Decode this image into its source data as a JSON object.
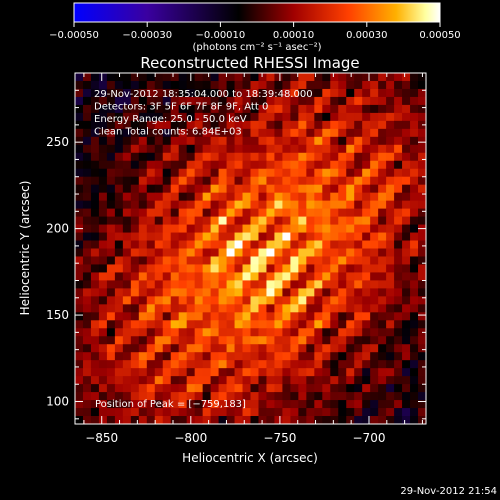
{
  "chart_data": {
    "type": "heatmap",
    "title": "Reconstructed RHESSI Image",
    "xlabel": "Heliocentric X (arcsec)",
    "ylabel": "Heliocentric Y (arcsec)",
    "xlim": [
      -865,
      -668
    ],
    "ylim": [
      87,
      290
    ],
    "x_ticks": [
      -850,
      -800,
      -750,
      -700
    ],
    "y_ticks": [
      100,
      150,
      200,
      250
    ],
    "x_tick_labels": [
      "−850",
      "−800",
      "−750",
      "−700"
    ],
    "y_tick_labels": [
      "100",
      "150",
      "200",
      "250"
    ],
    "grid": false,
    "peak": [
      -759,
      183
    ],
    "colorbar": {
      "range": [
        -0.0005,
        0.0005
      ],
      "ticks": [
        -0.0005,
        -0.0003,
        -0.0001,
        0.0001,
        0.0003,
        0.0005
      ],
      "tick_labels": [
        "−0.00050",
        "−0.00030",
        "−0.00010",
        "0.00010",
        "0.00030",
        "0.00050"
      ],
      "unit_label": "(photons cm⁻² s⁻¹ asec⁻²)",
      "colors": [
        "#0000ff",
        "#3a00a0",
        "#000000",
        "#a00000",
        "#ff4000",
        "#ffb000",
        "#ffffa0",
        "#ffffff"
      ]
    },
    "annotations": [
      "29-Nov-2012 18:35:04.000 to 18:39:48.000",
      "Detectors: 3F 5F 6F 7F 8F 9F, Att 0",
      "Energy Range: 25.0 - 50.0 keV",
      "Clean      Total counts: 6.84E+03"
    ],
    "peak_label": "Position of Peak = [−759,183]"
  },
  "footer": {
    "timestamp": "29-Nov-2012 21:54"
  }
}
